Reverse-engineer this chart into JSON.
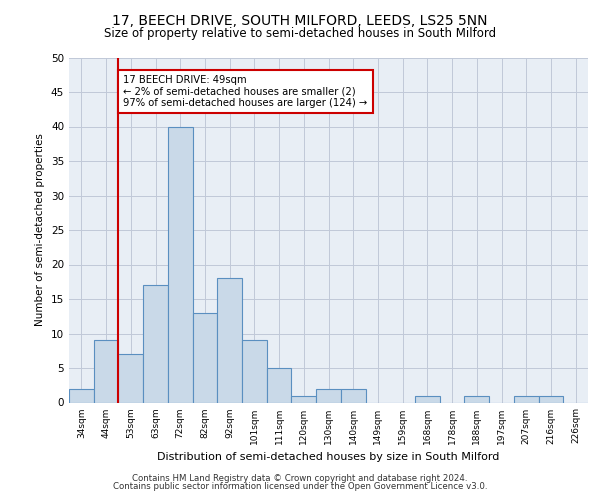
{
  "title1": "17, BEECH DRIVE, SOUTH MILFORD, LEEDS, LS25 5NN",
  "title2": "Size of property relative to semi-detached houses in South Milford",
  "xlabel": "Distribution of semi-detached houses by size in South Milford",
  "ylabel": "Number of semi-detached properties",
  "categories": [
    "34sqm",
    "44sqm",
    "53sqm",
    "63sqm",
    "72sqm",
    "82sqm",
    "92sqm",
    "101sqm",
    "111sqm",
    "120sqm",
    "130sqm",
    "140sqm",
    "149sqm",
    "159sqm",
    "168sqm",
    "178sqm",
    "188sqm",
    "197sqm",
    "207sqm",
    "216sqm",
    "226sqm"
  ],
  "values": [
    2,
    9,
    7,
    17,
    40,
    13,
    18,
    9,
    5,
    1,
    2,
    2,
    0,
    0,
    1,
    0,
    1,
    0,
    1,
    1,
    0
  ],
  "bar_color": "#c9d9e8",
  "bar_edgecolor": "#5a8fc0",
  "subject_line_color": "#cc0000",
  "annotation_text": "17 BEECH DRIVE: 49sqm\n← 2% of semi-detached houses are smaller (2)\n97% of semi-detached houses are larger (124) →",
  "annotation_box_color": "#ffffff",
  "annotation_box_edgecolor": "#cc0000",
  "ylim": [
    0,
    50
  ],
  "yticks": [
    0,
    5,
    10,
    15,
    20,
    25,
    30,
    35,
    40,
    45,
    50
  ],
  "grid_color": "#c0c8d8",
  "background_color": "#e8eef5",
  "footer_line1": "Contains HM Land Registry data © Crown copyright and database right 2024.",
  "footer_line2": "Contains public sector information licensed under the Open Government Licence v3.0."
}
